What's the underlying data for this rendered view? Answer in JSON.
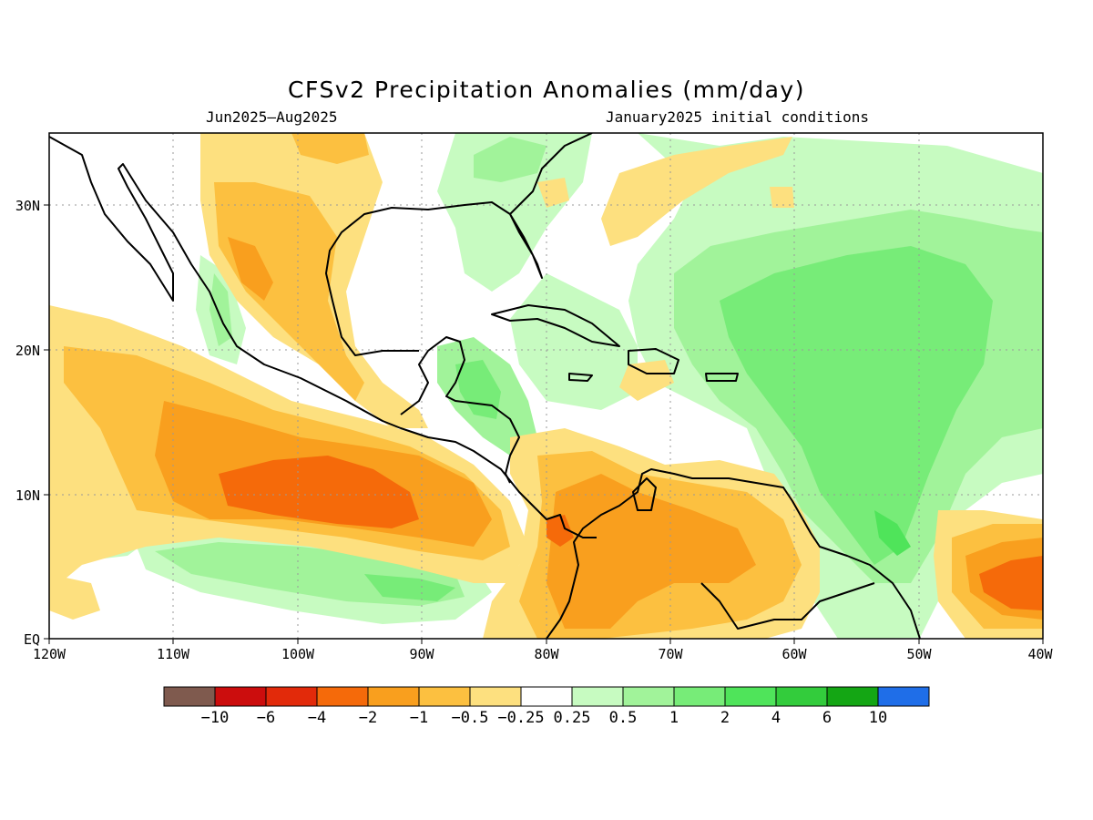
{
  "title": "CFSv2 Precipitation Anomalies (mm/day)",
  "period": "Jun2025–Aug2025",
  "init": "January2025 initial conditions",
  "map": {
    "lon_ticks": [
      "120W",
      "110W",
      "100W",
      "90W",
      "80W",
      "70W",
      "60W",
      "50W",
      "40W"
    ],
    "lat_ticks": [
      "30N",
      "20N",
      "10N",
      "EQ"
    ]
  },
  "legend": {
    "labels": [
      "−10",
      "−6",
      "−4",
      "−2",
      "−1",
      "−0.5",
      "−0.25",
      "0.25",
      "0.5",
      "1",
      "2",
      "4",
      "6",
      "10"
    ],
    "colors": [
      "#7f5a4e",
      "#cc0d0d",
      "#e22a0a",
      "#f56a0a",
      "#f99f1e",
      "#fcc040",
      "#fde07f",
      "#ffffff",
      "#c7fbc1",
      "#a1f39a",
      "#77ec78",
      "#4fe45a",
      "#33cc3c",
      "#14a614",
      "#1f6ee8"
    ]
  },
  "colors": {
    "dry_light": "#fde07f",
    "dry_med": "#fcc040",
    "dry_strong": "#f99f1e",
    "dry_heavy": "#f56a0a",
    "wet_light": "#c7fbc1",
    "wet_med": "#a1f39a",
    "wet_strong": "#77ec78",
    "wet_heavy": "#4fe45a"
  }
}
